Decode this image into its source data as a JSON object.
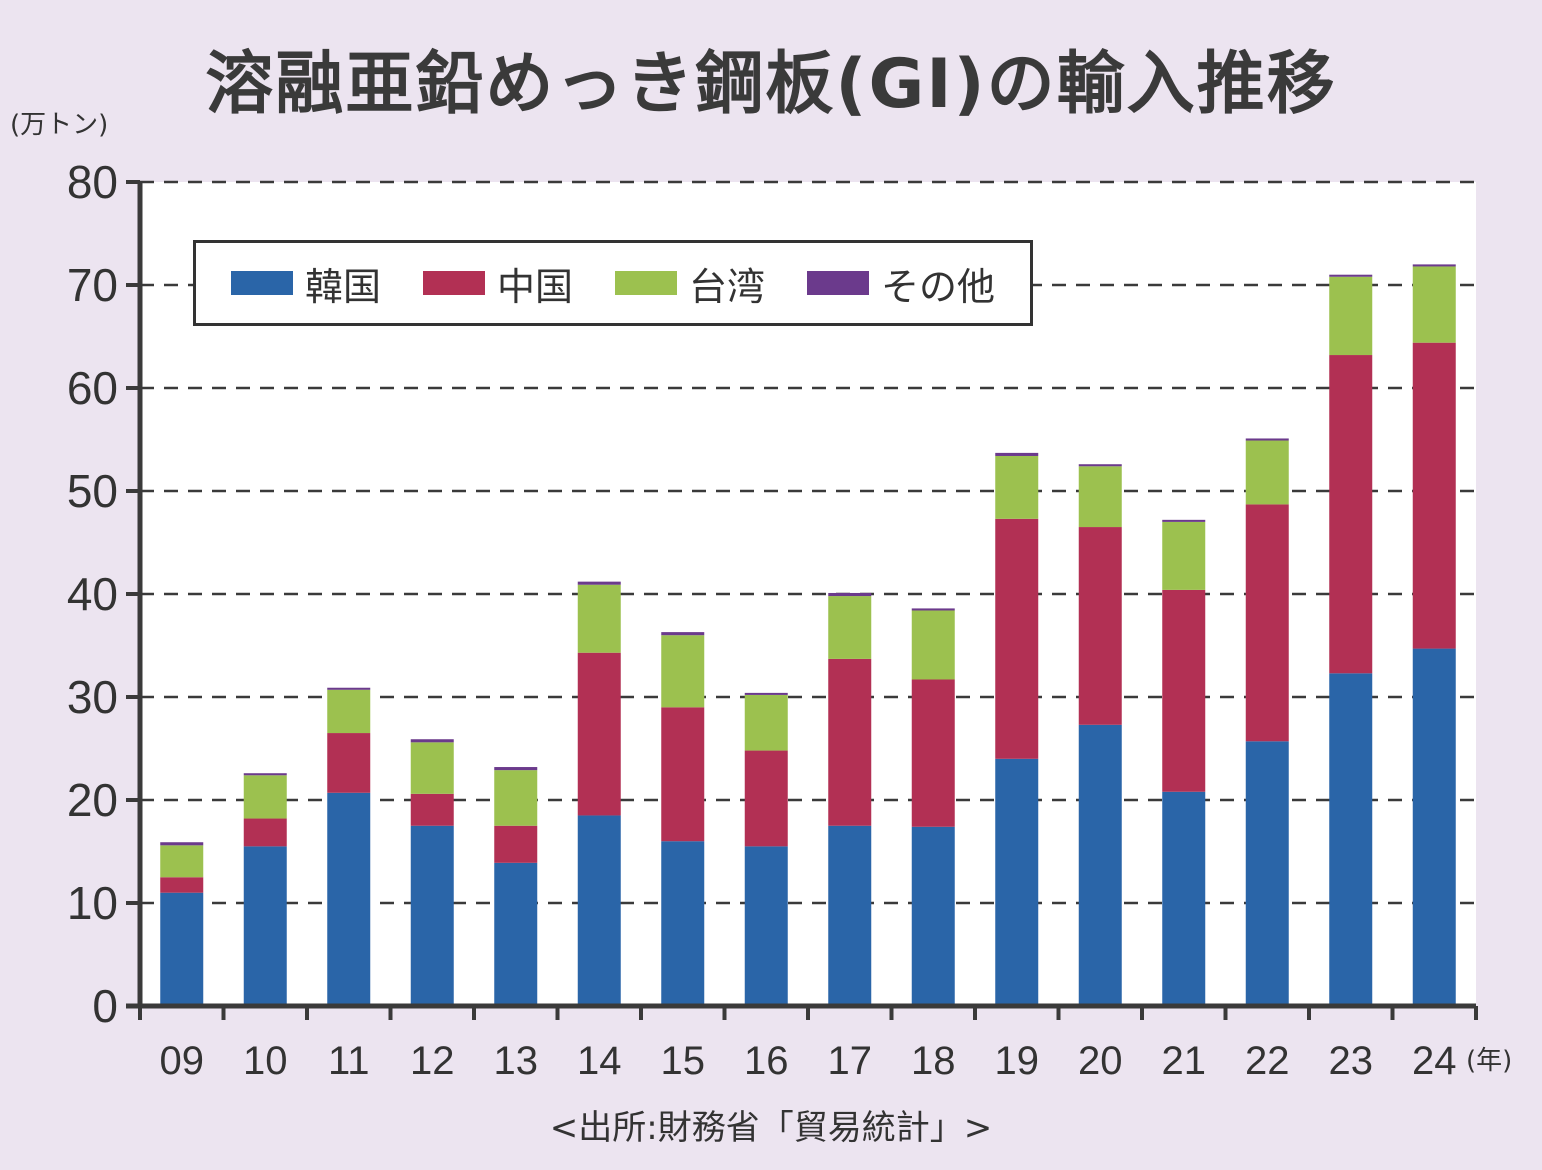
{
  "chart_data": {
    "type": "bar",
    "stacked": true,
    "title": "溶融亜鉛めっき鋼板(GI)の輸入推移",
    "ylabel": "(万トン)",
    "xlabel": "(年)",
    "source": "<出所:財務省「貿易統計」>",
    "ylim": [
      0,
      80
    ],
    "yticks": [
      0,
      10,
      20,
      30,
      40,
      50,
      60,
      70,
      80
    ],
    "grid": true,
    "legend_position": "top-left",
    "categories": [
      "09",
      "10",
      "11",
      "12",
      "13",
      "14",
      "15",
      "16",
      "17",
      "18",
      "19",
      "20",
      "21",
      "22",
      "23",
      "24"
    ],
    "series": [
      {
        "name": "韓国",
        "color": "#2a65a8",
        "values": [
          11.0,
          15.5,
          20.7,
          17.5,
          13.9,
          18.5,
          16.0,
          15.5,
          17.5,
          17.4,
          24.0,
          27.3,
          20.8,
          25.7,
          32.3,
          34.7
        ]
      },
      {
        "name": "中国",
        "color": "#b23054",
        "values": [
          1.5,
          2.7,
          5.8,
          3.1,
          3.6,
          15.8,
          13.0,
          9.3,
          16.2,
          14.3,
          23.3,
          19.2,
          19.6,
          23.0,
          30.9,
          29.7
        ]
      },
      {
        "name": "台湾",
        "color": "#9cc14f",
        "values": [
          3.1,
          4.2,
          4.2,
          5.0,
          5.4,
          6.6,
          7.0,
          5.4,
          6.1,
          6.7,
          6.1,
          5.9,
          6.6,
          6.2,
          7.6,
          7.4
        ]
      },
      {
        "name": "その他",
        "color": "#6b3a8c",
        "values": [
          0.3,
          0.2,
          0.2,
          0.3,
          0.3,
          0.3,
          0.3,
          0.2,
          0.3,
          0.2,
          0.3,
          0.2,
          0.2,
          0.2,
          0.2,
          0.2
        ]
      }
    ]
  }
}
